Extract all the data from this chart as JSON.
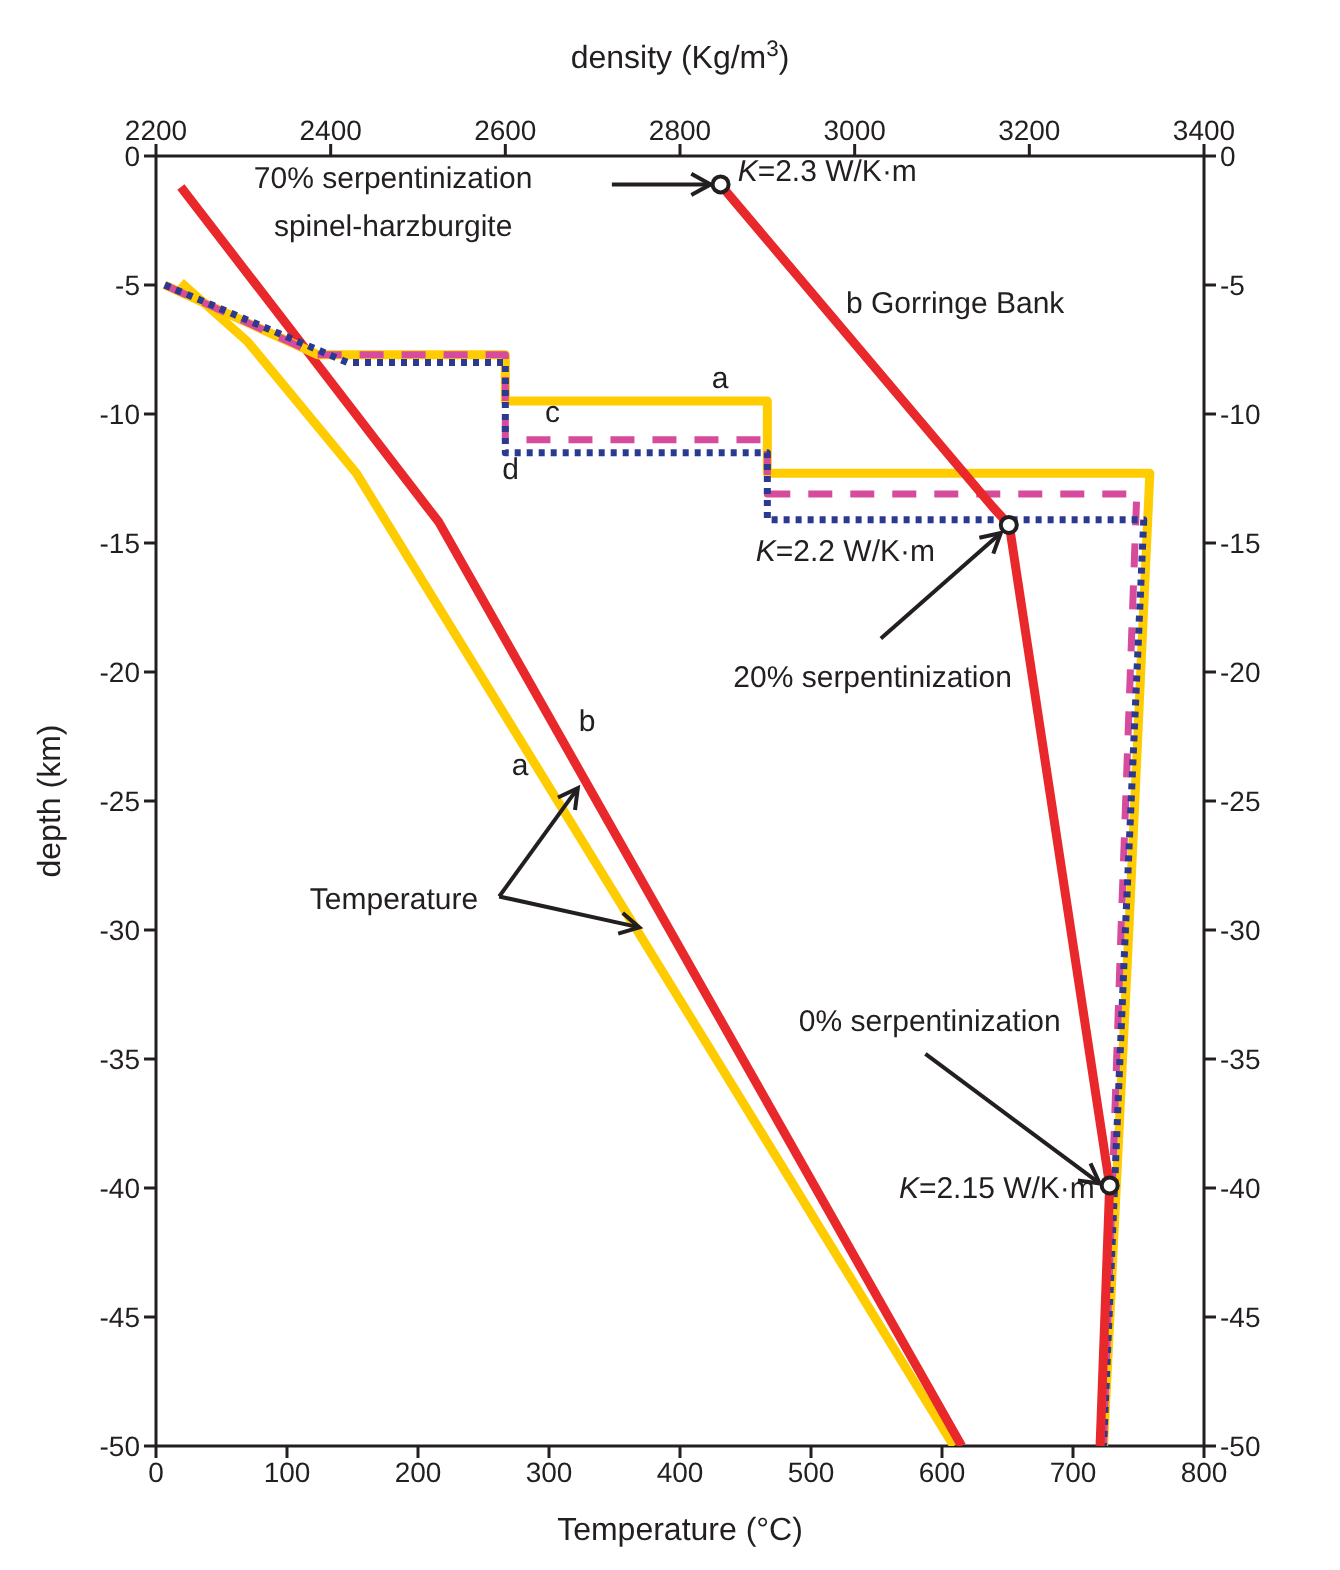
{
  "chart_data": {
    "type": "line",
    "xlabel": "Temperature (°C)",
    "ylabel": "depth (km)",
    "x2label": "density (Kg/m$^{3}$)",
    "xlim": [
      0,
      800
    ],
    "xticks": [
      0,
      100,
      200,
      300,
      400,
      500,
      600,
      700,
      800
    ],
    "x2lim": [
      2200,
      3400
    ],
    "x2ticks": [
      2200,
      2400,
      2600,
      2800,
      3000,
      3200,
      3400
    ],
    "ylim": [
      -50,
      0
    ],
    "yticks": [
      -50,
      -45,
      -40,
      -35,
      -30,
      -25,
      -20,
      -15,
      -10,
      -5,
      0
    ],
    "y2lim": [
      -50,
      0
    ],
    "y2ticks": [
      -50,
      -45,
      -40,
      -35,
      -30,
      -25,
      -20,
      -15,
      -10,
      -5,
      0
    ],
    "series": [
      {
        "name": "a",
        "color": "#ffcc00",
        "line_style": "solid",
        "x": [
          19,
          70,
          153,
          609
        ],
        "values": [
          -4.9,
          -7.2,
          -12.3,
          -50
        ]
      },
      {
        "name": "b",
        "color": "#e8282b",
        "line_style": "solid",
        "x": [
          19,
          216,
          615
        ],
        "values": [
          -1.2,
          -14.2,
          -50
        ]
      },
      {
        "name": "a",
        "color": "#ffcc00",
        "line_style": "solid",
        "axis": "x2",
        "x": [
          2210,
          2385,
          2600,
          2600,
          2900,
          2900,
          3338,
          3314,
          3285
        ],
        "values": [
          -5,
          -7.7,
          -7.7,
          -9.5,
          -9.5,
          -12.3,
          -12.3,
          -30,
          -50
        ]
      },
      {
        "name": "c",
        "color": "#d64b9b",
        "line_style": "dashed",
        "axis": "x2",
        "x": [
          2210,
          2385,
          2600,
          2600,
          2900,
          2900,
          3323,
          3305,
          3285
        ],
        "values": [
          -5,
          -7.7,
          -7.7,
          -11,
          -11,
          -13.1,
          -13.1,
          -30,
          -50
        ]
      },
      {
        "name": "d",
        "color": "#2b3990",
        "line_style": "dotted",
        "axis": "x2",
        "x": [
          2210,
          2419,
          2600,
          2600,
          2900,
          2900,
          3331,
          3310,
          3285
        ],
        "values": [
          -5,
          -8,
          -8,
          -11.5,
          -11.5,
          -14.1,
          -14.1,
          -30,
          -50
        ]
      },
      {
        "name": "b Gorringe Bank",
        "color": "#e8282b",
        "line_style": "solid",
        "axis": "x2",
        "x": [
          2846,
          3158,
          3177,
          3292,
          3281
        ],
        "values": [
          -1.1,
          -13.6,
          -14.3,
          -39.9,
          -50
        ]
      }
    ],
    "annotations": [
      "70% serpentinization",
      "spinel-harzburgite",
      {
        "text": "K=2.3 W/K·m",
        "x": 431,
        "y": -1.1
      },
      "K=2.2 W/K·m",
      {
        "text": "20% serpentinization",
        "x": 651,
        "y": -14.3
      },
      {
        "text": "Temperature",
        "x": 322,
        "y": -24.5
      },
      {
        "text": "0% serpentinization",
        "x": 728,
        "y": -39.9
      },
      "K=2.15 W/K·m"
    ]
  }
}
